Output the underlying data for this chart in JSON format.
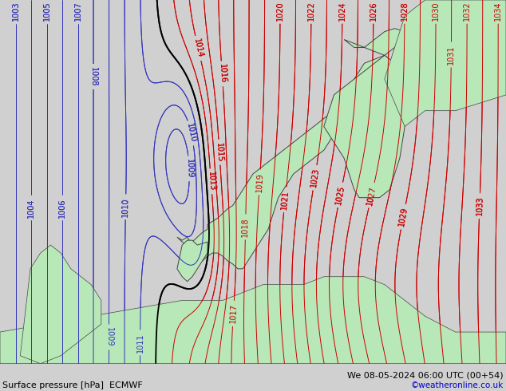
{
  "title_left": "Surface pressure [hPa]  ECMWF",
  "title_right": "We 08-05-2024 06:00 UTC (00+54)",
  "copyright": "©weatheronline.co.uk",
  "background_color": "#d0d0d0",
  "land_color": "#b8e8b8",
  "label_fontsize": 7,
  "title_fontsize": 8,
  "copyright_color": "#0000cc",
  "title_color": "#000000",
  "lon_min": -10,
  "lon_max": 40,
  "lat_min": 50,
  "lat_max": 73,
  "pressure_min": 1002,
  "pressure_max": 1034,
  "black_isobar": 1012
}
